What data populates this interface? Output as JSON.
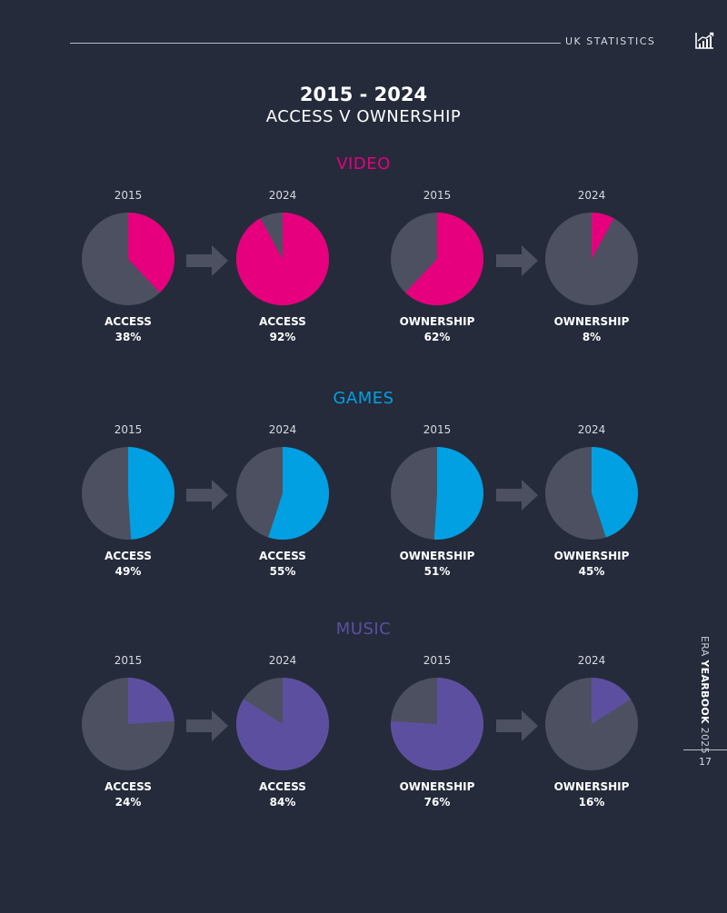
{
  "header": {
    "label": "UK STATISTICS",
    "icon": "bar-chart-icon"
  },
  "title": "2015 - 2024",
  "subtitle": "ACCESS V OWNERSHIP",
  "colors": {
    "background": "#252b3b",
    "pie_base": "#4d5060",
    "arrow": "#4d5060",
    "video": "#e6007e",
    "games": "#00a0e3",
    "music": "#5d4fa0"
  },
  "chart_data": [
    {
      "type": "pie",
      "section": "VIDEO",
      "color_key": "video",
      "items": [
        {
          "year": "2015",
          "metric": "ACCESS",
          "value": 38,
          "label": "38%"
        },
        {
          "year": "2024",
          "metric": "ACCESS",
          "value": 92,
          "label": "92%"
        },
        {
          "year": "2015",
          "metric": "OWNERSHIP",
          "value": 62,
          "label": "62%"
        },
        {
          "year": "2024",
          "metric": "OWNERSHIP",
          "value": 8,
          "label": "8%"
        }
      ]
    },
    {
      "type": "pie",
      "section": "GAMES",
      "color_key": "games",
      "items": [
        {
          "year": "2015",
          "metric": "ACCESS",
          "value": 49,
          "label": "49%"
        },
        {
          "year": "2024",
          "metric": "ACCESS",
          "value": 55,
          "label": "55%"
        },
        {
          "year": "2015",
          "metric": "OWNERSHIP",
          "value": 51,
          "label": "51%"
        },
        {
          "year": "2024",
          "metric": "OWNERSHIP",
          "value": 45,
          "label": "45%"
        }
      ]
    },
    {
      "type": "pie",
      "section": "MUSIC",
      "color_key": "music",
      "items": [
        {
          "year": "2015",
          "metric": "ACCESS",
          "value": 24,
          "label": "24%"
        },
        {
          "year": "2024",
          "metric": "ACCESS",
          "value": 84,
          "label": "84%"
        },
        {
          "year": "2015",
          "metric": "OWNERSHIP",
          "value": 76,
          "label": "76%"
        },
        {
          "year": "2024",
          "metric": "OWNERSHIP",
          "value": 16,
          "label": "16%"
        }
      ]
    }
  ],
  "footer": {
    "publisher": "ERA",
    "publication": "YEARBOOK",
    "edition": "2025",
    "page_number": "17"
  }
}
